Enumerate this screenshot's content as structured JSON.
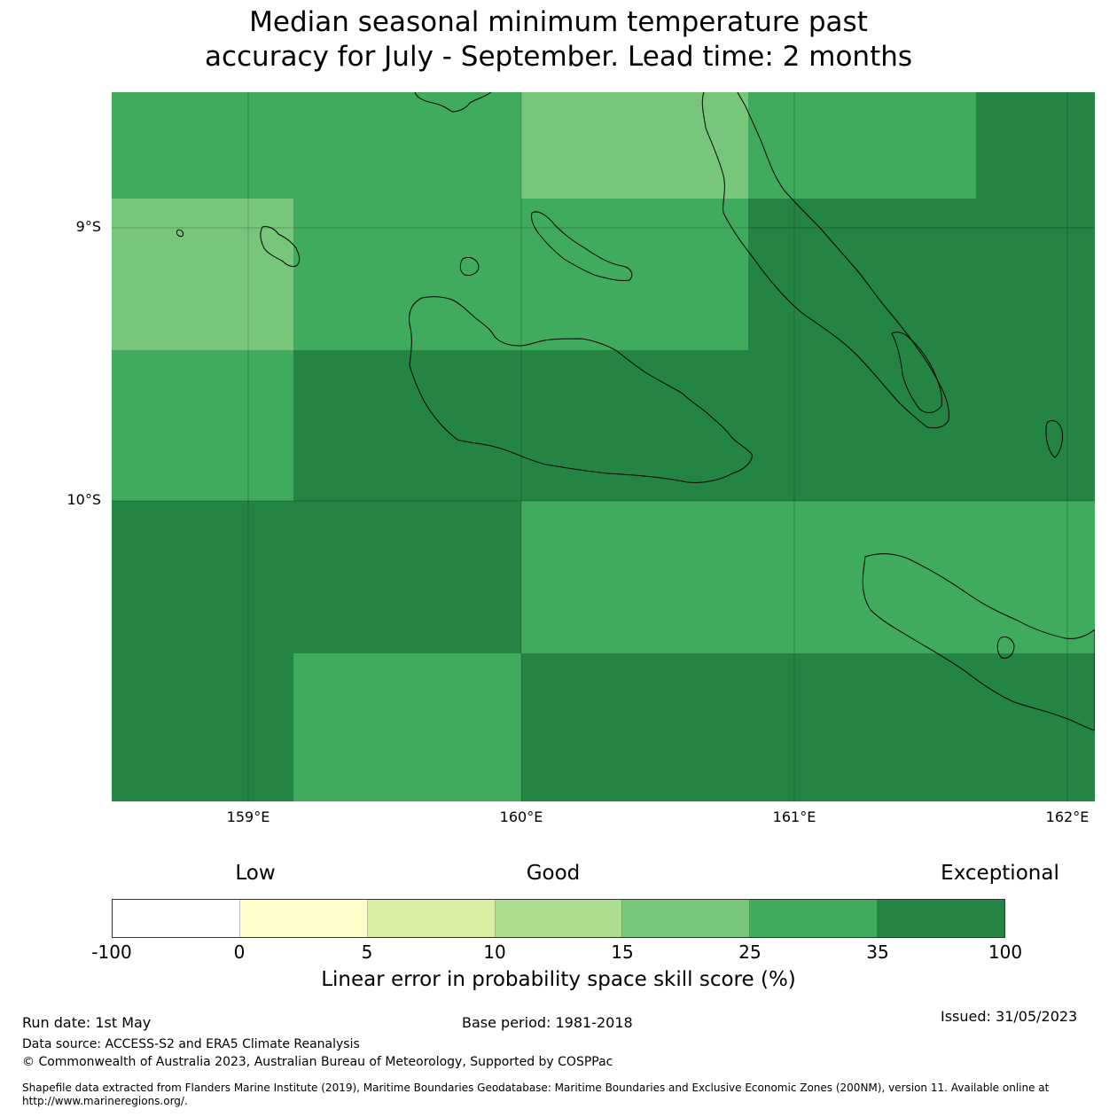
{
  "title": {
    "line1": "Median seasonal minimum temperature past",
    "line2": "accuracy for July - September. Lead time: 2 months"
  },
  "map": {
    "lat_labels": [
      "9°S",
      "10°S"
    ],
    "lon_labels": [
      "159°E",
      "160°E",
      "161°E",
      "162°E"
    ]
  },
  "legend": {
    "categories": [
      "Low",
      "Good",
      "Exceptional"
    ],
    "ticks": [
      "-100",
      "0",
      "5",
      "10",
      "15",
      "25",
      "35",
      "100"
    ],
    "colors": [
      "#ffffff",
      "#ffffcc",
      "#d9f0a3",
      "#addd8e",
      "#78c679",
      "#41ab5d",
      "#238443"
    ],
    "label": "Linear error in probability space skill score (%)"
  },
  "footer": {
    "run_date": "Run date: 1st May",
    "base_period": "Base period: 1981-2018",
    "issued": "Issued: 31/05/2023",
    "data_source": "Data source: ACCESS-S2 and ERA5 Climate Reanalysis",
    "copyright": "© Commonwealth of Australia 2023, Australian Bureau of Meteorology, Supported by COSPPac",
    "shapefile": "Shapefile data extracted from Flanders Marine Institute (2019), Maritime Boundaries Geodatabase: Maritime Boundaries and Exclusive Economic Zones (200NM), version 11. Available online at http://www.marineregions.org/."
  }
}
